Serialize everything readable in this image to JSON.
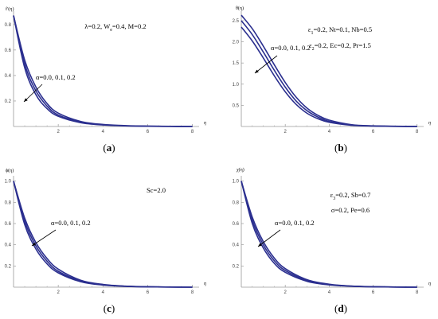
{
  "panel_labels": {
    "a": {
      "pre": "(",
      "letter": "a",
      "post": ")"
    },
    "b": {
      "pre": "(",
      "letter": "b",
      "post": ")"
    },
    "c": {
      "pre": "(",
      "letter": "c",
      "post": ")"
    },
    "d": {
      "pre": "(",
      "letter": "d",
      "post": ")"
    }
  },
  "colors": {
    "curve": "#2b2f8f",
    "axis": "#9a9a9a"
  },
  "chart_data": [
    {
      "id": "a",
      "type": "line",
      "ylabel": "f′(η)",
      "xlabel": "η",
      "xlim": [
        0,
        8.3
      ],
      "ylim": [
        0,
        0.88
      ],
      "xticks": [
        2,
        4,
        6,
        8
      ],
      "yticks": [
        0.2,
        0.4,
        0.6,
        0.8
      ],
      "params": [
        "λ=0.2, W",
        "e",
        "=0.4, M=0.2"
      ],
      "curve_label": "α=0.0, 0.1, 0.2",
      "series": [
        {
          "x": [
            0,
            0.5,
            1,
            1.5,
            2,
            3,
            4,
            5,
            6,
            7,
            8
          ],
          "y": [
            0.87,
            0.46,
            0.25,
            0.14,
            0.08,
            0.03,
            0.012,
            0.005,
            0.002,
            0.001,
            0.0
          ]
        },
        {
          "x": [
            0,
            0.5,
            1,
            1.5,
            2,
            3,
            4,
            5,
            6,
            7,
            8
          ],
          "y": [
            0.87,
            0.49,
            0.28,
            0.16,
            0.09,
            0.035,
            0.014,
            0.006,
            0.002,
            0.001,
            0.0
          ]
        },
        {
          "x": [
            0,
            0.5,
            1,
            1.5,
            2,
            3,
            4,
            5,
            6,
            7,
            8
          ],
          "y": [
            0.87,
            0.52,
            0.31,
            0.18,
            0.105,
            0.04,
            0.016,
            0.007,
            0.003,
            0.001,
            0.0
          ]
        }
      ]
    },
    {
      "id": "b",
      "type": "line",
      "ylabel": "θ(η)",
      "xlabel": "η",
      "xlim": [
        0,
        8.3
      ],
      "ylim": [
        0,
        2.65
      ],
      "xticks": [
        2,
        4,
        6,
        8
      ],
      "yticks": [
        0.5,
        1.0,
        1.5,
        2.0,
        2.5
      ],
      "params": [
        "ε",
        "1",
        "=0.2, Nt=0.1, Nb=0.5",
        "ε",
        "2",
        "=0.2, Ec=0.2, Pr=1.5"
      ],
      "curve_label": "α=0.0, 0.1, 0.2",
      "series": [
        {
          "x": [
            0,
            0.5,
            1,
            1.5,
            2,
            2.5,
            3,
            3.5,
            4,
            5,
            6,
            7,
            8
          ],
          "y": [
            2.35,
            2.02,
            1.62,
            1.2,
            0.82,
            0.52,
            0.31,
            0.18,
            0.1,
            0.03,
            0.01,
            0.003,
            0.0
          ]
        },
        {
          "x": [
            0,
            0.5,
            1,
            1.5,
            2,
            2.5,
            3,
            3.5,
            4,
            5,
            6,
            7,
            8
          ],
          "y": [
            2.5,
            2.17,
            1.76,
            1.33,
            0.93,
            0.6,
            0.37,
            0.22,
            0.12,
            0.035,
            0.012,
            0.004,
            0.0
          ]
        },
        {
          "x": [
            0,
            0.5,
            1,
            1.5,
            2,
            2.5,
            3,
            3.5,
            4,
            5,
            6,
            7,
            8
          ],
          "y": [
            2.63,
            2.31,
            1.9,
            1.46,
            1.04,
            0.69,
            0.43,
            0.26,
            0.15,
            0.045,
            0.015,
            0.005,
            0.0
          ]
        }
      ]
    },
    {
      "id": "c",
      "type": "line",
      "ylabel": "ϕ(η)",
      "xlabel": "η",
      "xlim": [
        0,
        8.3
      ],
      "ylim": [
        0,
        1.02
      ],
      "xticks": [
        2,
        4,
        6,
        8
      ],
      "yticks": [
        0.2,
        0.4,
        0.6,
        0.8,
        1.0
      ],
      "params": [
        "Sc=2.0"
      ],
      "curve_label": "α=0.0, 0.1, 0.2",
      "series": [
        {
          "x": [
            0,
            0.5,
            1,
            1.5,
            2,
            3,
            4,
            5,
            6,
            7,
            8
          ],
          "y": [
            1.0,
            0.59,
            0.36,
            0.22,
            0.135,
            0.052,
            0.02,
            0.008,
            0.003,
            0.001,
            0.0
          ]
        },
        {
          "x": [
            0,
            0.5,
            1,
            1.5,
            2,
            3,
            4,
            5,
            6,
            7,
            8
          ],
          "y": [
            1.0,
            0.62,
            0.39,
            0.245,
            0.15,
            0.058,
            0.023,
            0.009,
            0.0035,
            0.0012,
            0.0
          ]
        },
        {
          "x": [
            0,
            0.5,
            1,
            1.5,
            2,
            3,
            4,
            5,
            6,
            7,
            8
          ],
          "y": [
            1.0,
            0.65,
            0.42,
            0.27,
            0.17,
            0.066,
            0.026,
            0.01,
            0.004,
            0.0015,
            0.0
          ]
        }
      ]
    },
    {
      "id": "d",
      "type": "line",
      "ylabel": "χ(η)",
      "xlabel": "η",
      "xlim": [
        0,
        8.3
      ],
      "ylim": [
        0,
        1.02
      ],
      "xticks": [
        2,
        4,
        6,
        8
      ],
      "yticks": [
        0.2,
        0.4,
        0.6,
        0.8,
        1.0
      ],
      "params": [
        "ε",
        "3",
        "=0.2, Sb=0.7",
        "σ=0.2, Pe=0.6"
      ],
      "curve_label": "α=0.0, 0.1, 0.2",
      "series": [
        {
          "x": [
            0,
            0.5,
            1,
            1.5,
            2,
            3,
            4,
            5,
            6,
            7,
            8
          ],
          "y": [
            1.0,
            0.6,
            0.37,
            0.225,
            0.14,
            0.055,
            0.022,
            0.009,
            0.0035,
            0.0012,
            0.0
          ]
        },
        {
          "x": [
            0,
            0.5,
            1,
            1.5,
            2,
            3,
            4,
            5,
            6,
            7,
            8
          ],
          "y": [
            1.0,
            0.63,
            0.4,
            0.25,
            0.157,
            0.062,
            0.025,
            0.01,
            0.004,
            0.0014,
            0.0
          ]
        },
        {
          "x": [
            0,
            0.5,
            1,
            1.5,
            2,
            3,
            4,
            5,
            6,
            7,
            8
          ],
          "y": [
            1.0,
            0.66,
            0.43,
            0.275,
            0.175,
            0.07,
            0.028,
            0.011,
            0.0045,
            0.0016,
            0.0
          ]
        }
      ]
    }
  ]
}
